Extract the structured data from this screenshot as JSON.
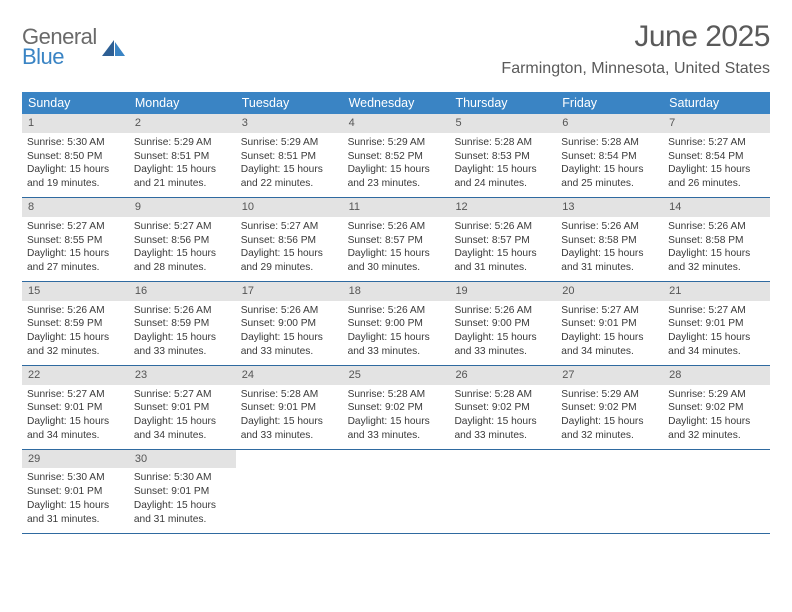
{
  "logo": {
    "line1": "General",
    "line2": "Blue"
  },
  "colors": {
    "header_bg": "#3a84c4",
    "daynum_bg": "#e3e3e3",
    "week_border": "#2f6aa0",
    "text": "#3a3a3a",
    "title": "#5a5a5a",
    "logo_gray": "#6a6a6a",
    "logo_blue": "#3a84c4",
    "page_bg": "#ffffff"
  },
  "typography": {
    "month_title_fontsize": 30,
    "location_fontsize": 16,
    "dow_fontsize": 12.5,
    "daynum_fontsize": 11,
    "body_fontsize": 10.2
  },
  "title": "June 2025",
  "location": "Farmington, Minnesota, United States",
  "days_of_week": [
    "Sunday",
    "Monday",
    "Tuesday",
    "Wednesday",
    "Thursday",
    "Friday",
    "Saturday"
  ],
  "weeks": [
    [
      {
        "n": "1",
        "sr": "5:30 AM",
        "ss": "8:50 PM",
        "dh": "15",
        "dm": "19"
      },
      {
        "n": "2",
        "sr": "5:29 AM",
        "ss": "8:51 PM",
        "dh": "15",
        "dm": "21"
      },
      {
        "n": "3",
        "sr": "5:29 AM",
        "ss": "8:51 PM",
        "dh": "15",
        "dm": "22"
      },
      {
        "n": "4",
        "sr": "5:29 AM",
        "ss": "8:52 PM",
        "dh": "15",
        "dm": "23"
      },
      {
        "n": "5",
        "sr": "5:28 AM",
        "ss": "8:53 PM",
        "dh": "15",
        "dm": "24"
      },
      {
        "n": "6",
        "sr": "5:28 AM",
        "ss": "8:54 PM",
        "dh": "15",
        "dm": "25"
      },
      {
        "n": "7",
        "sr": "5:27 AM",
        "ss": "8:54 PM",
        "dh": "15",
        "dm": "26"
      }
    ],
    [
      {
        "n": "8",
        "sr": "5:27 AM",
        "ss": "8:55 PM",
        "dh": "15",
        "dm": "27"
      },
      {
        "n": "9",
        "sr": "5:27 AM",
        "ss": "8:56 PM",
        "dh": "15",
        "dm": "28"
      },
      {
        "n": "10",
        "sr": "5:27 AM",
        "ss": "8:56 PM",
        "dh": "15",
        "dm": "29"
      },
      {
        "n": "11",
        "sr": "5:26 AM",
        "ss": "8:57 PM",
        "dh": "15",
        "dm": "30"
      },
      {
        "n": "12",
        "sr": "5:26 AM",
        "ss": "8:57 PM",
        "dh": "15",
        "dm": "31"
      },
      {
        "n": "13",
        "sr": "5:26 AM",
        "ss": "8:58 PM",
        "dh": "15",
        "dm": "31"
      },
      {
        "n": "14",
        "sr": "5:26 AM",
        "ss": "8:58 PM",
        "dh": "15",
        "dm": "32"
      }
    ],
    [
      {
        "n": "15",
        "sr": "5:26 AM",
        "ss": "8:59 PM",
        "dh": "15",
        "dm": "32"
      },
      {
        "n": "16",
        "sr": "5:26 AM",
        "ss": "8:59 PM",
        "dh": "15",
        "dm": "33"
      },
      {
        "n": "17",
        "sr": "5:26 AM",
        "ss": "9:00 PM",
        "dh": "15",
        "dm": "33"
      },
      {
        "n": "18",
        "sr": "5:26 AM",
        "ss": "9:00 PM",
        "dh": "15",
        "dm": "33"
      },
      {
        "n": "19",
        "sr": "5:26 AM",
        "ss": "9:00 PM",
        "dh": "15",
        "dm": "33"
      },
      {
        "n": "20",
        "sr": "5:27 AM",
        "ss": "9:01 PM",
        "dh": "15",
        "dm": "34"
      },
      {
        "n": "21",
        "sr": "5:27 AM",
        "ss": "9:01 PM",
        "dh": "15",
        "dm": "34"
      }
    ],
    [
      {
        "n": "22",
        "sr": "5:27 AM",
        "ss": "9:01 PM",
        "dh": "15",
        "dm": "34"
      },
      {
        "n": "23",
        "sr": "5:27 AM",
        "ss": "9:01 PM",
        "dh": "15",
        "dm": "34"
      },
      {
        "n": "24",
        "sr": "5:28 AM",
        "ss": "9:01 PM",
        "dh": "15",
        "dm": "33"
      },
      {
        "n": "25",
        "sr": "5:28 AM",
        "ss": "9:02 PM",
        "dh": "15",
        "dm": "33"
      },
      {
        "n": "26",
        "sr": "5:28 AM",
        "ss": "9:02 PM",
        "dh": "15",
        "dm": "33"
      },
      {
        "n": "27",
        "sr": "5:29 AM",
        "ss": "9:02 PM",
        "dh": "15",
        "dm": "32"
      },
      {
        "n": "28",
        "sr": "5:29 AM",
        "ss": "9:02 PM",
        "dh": "15",
        "dm": "32"
      }
    ],
    [
      {
        "n": "29",
        "sr": "5:30 AM",
        "ss": "9:01 PM",
        "dh": "15",
        "dm": "31"
      },
      {
        "n": "30",
        "sr": "5:30 AM",
        "ss": "9:01 PM",
        "dh": "15",
        "dm": "31"
      },
      null,
      null,
      null,
      null,
      null
    ]
  ],
  "labels": {
    "sunrise": "Sunrise:",
    "sunset": "Sunset:",
    "daylight_prefix": "Daylight:",
    "hours_word": "hours",
    "and_word": "and",
    "minutes_word": "minutes."
  }
}
